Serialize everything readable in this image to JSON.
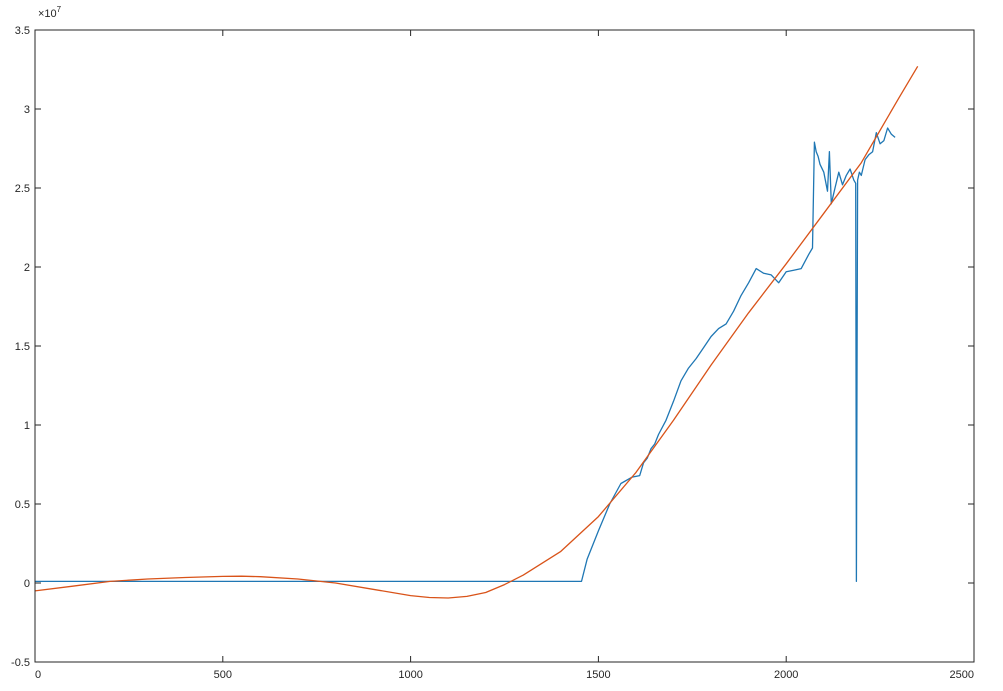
{
  "chart_data": {
    "type": "line",
    "title": "",
    "xlabel": "",
    "ylabel": "",
    "xlim": [
      0,
      2500
    ],
    "ylim": [
      -0.5,
      3.5
    ],
    "y_exponent_label": "×10",
    "y_exponent_power": "7",
    "grid": false,
    "legend": "none",
    "x_ticks": [
      0,
      500,
      1000,
      1500,
      2000,
      2500
    ],
    "x_tick_labels": [
      "0",
      "500",
      "1000",
      "1500",
      "2000",
      "2500"
    ],
    "y_ticks": [
      -0.5,
      0,
      0.5,
      1,
      1.5,
      2,
      2.5,
      3,
      3.5
    ],
    "y_tick_labels": [
      "-0.5",
      "0",
      "0.5",
      "1",
      "1.5",
      "2",
      "2.5",
      "3",
      "3.5"
    ],
    "series": [
      {
        "color": "#1f77b4",
        "x": [
          0,
          1455,
          1470,
          1500,
          1530,
          1560,
          1590,
          1610,
          1620,
          1630,
          1640,
          1650,
          1660,
          1680,
          1700,
          1720,
          1740,
          1760,
          1780,
          1800,
          1820,
          1840,
          1860,
          1880,
          1900,
          1920,
          1940,
          1960,
          1980,
          2000,
          2020,
          2040,
          2060,
          2070,
          2075,
          2080,
          2085,
          2090,
          2100,
          2110,
          2115,
          2120,
          2130,
          2140,
          2150,
          2160,
          2170,
          2180,
          2185,
          2187,
          2190,
          2195,
          2200,
          2210,
          2220,
          2230,
          2240,
          2250,
          2260,
          2270,
          2280,
          2290
        ],
        "y": [
          0.01,
          0.01,
          0.15,
          0.33,
          0.5,
          0.63,
          0.67,
          0.68,
          0.76,
          0.79,
          0.85,
          0.88,
          0.94,
          1.03,
          1.15,
          1.28,
          1.36,
          1.42,
          1.49,
          1.56,
          1.61,
          1.64,
          1.72,
          1.82,
          1.9,
          1.99,
          1.96,
          1.95,
          1.9,
          1.97,
          1.98,
          1.99,
          2.08,
          2.12,
          2.79,
          2.73,
          2.7,
          2.65,
          2.6,
          2.48,
          2.73,
          2.4,
          2.5,
          2.6,
          2.52,
          2.58,
          2.62,
          2.55,
          2.53,
          0.01,
          2.55,
          2.6,
          2.58,
          2.68,
          2.71,
          2.73,
          2.85,
          2.78,
          2.8,
          2.88,
          2.84,
          2.82
        ]
      },
      {
        "color": "#d95319",
        "x": [
          0,
          100,
          200,
          300,
          400,
          500,
          550,
          600,
          700,
          800,
          900,
          1000,
          1050,
          1100,
          1150,
          1200,
          1250,
          1300,
          1400,
          1500,
          1600,
          1700,
          1800,
          1900,
          2000,
          2100,
          2200,
          2300,
          2350
        ],
        "y": [
          -0.05,
          -0.02,
          0.01,
          0.025,
          0.035,
          0.042,
          0.043,
          0.04,
          0.025,
          0.0,
          -0.04,
          -0.08,
          -0.092,
          -0.095,
          -0.085,
          -0.06,
          -0.01,
          0.05,
          0.2,
          0.42,
          0.7,
          1.03,
          1.38,
          1.71,
          2.02,
          2.34,
          2.66,
          3.07,
          3.27
        ]
      }
    ]
  }
}
